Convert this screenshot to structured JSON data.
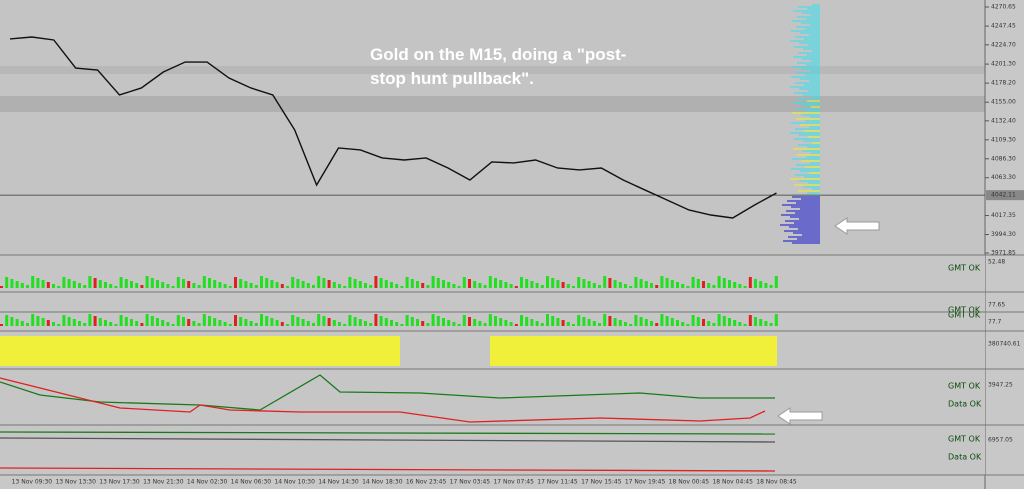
{
  "chart_data": {
    "type": "line",
    "annotation": [
      "Gold on the M15, doing a \"post-",
      "stop hunt pullback\"."
    ],
    "categories": [
      null,
      "13 Nov 09:30",
      null,
      "13 Nov 13:30",
      null,
      "13 Nov 17:30",
      null,
      "13 Nov 21:30",
      null,
      "14 Nov 02:30",
      null,
      "14 Nov 06:30",
      null,
      "14 Nov 10:30",
      null,
      "14 Nov 14:30",
      null,
      "14 Nov 18:30",
      null,
      "16 Nov 23:45",
      null,
      "17 Nov 03:45",
      null,
      "17 Nov 07:45",
      null,
      "17 Nov 11:45",
      null,
      "17 Nov 15:45",
      null,
      "17 Nov 19:45",
      null,
      "18 Nov 00:45",
      null,
      "18 Nov 04:45",
      null,
      "18 Nov 08:45"
    ],
    "values": [
      4231.8,
      4234.2,
      4230.6,
      4196.5,
      4194.1,
      4163.8,
      4172.3,
      4191.7,
      4203.8,
      4203.8,
      4184.4,
      4172.3,
      4163.8,
      4121.3,
      4054.4,
      4099.4,
      4097.0,
      4087.3,
      4084.8,
      4087.3,
      4075.1,
      4060.5,
      4082.4,
      4081.2,
      4084.8,
      4075.1,
      4072.7,
      4075.1,
      4060.5,
      4048.3,
      4036.2,
      4024.1,
      4018.0,
      4014.4,
      4030.2,
      4044.7
    ],
    "color": "#111111",
    "ylim": [
      3971.85,
      4270.65
    ],
    "yticks": [
      4270.65,
      4247.45,
      {
        "value": 4224.7,
        "label": "4224.70"
      },
      {
        "value": 4201.3,
        "label": "4201.30"
      },
      {
        "value": 4178.2,
        "label": "4178.20"
      },
      {
        "value": 4155.0,
        "label": "4155.00"
      },
      {
        "value": 4132.4,
        "label": "4132.40"
      },
      {
        "value": 4109.3,
        "label": "4109.30"
      },
      {
        "value": 4086.3,
        "label": "4086.30"
      },
      {
        "value": 4063.3,
        "label": "4063.30"
      },
      4017.35,
      {
        "value": 3994.3,
        "label": "3994.30"
      },
      3971.85
    ],
    "last_price": 4042.11
  },
  "panels": [
    {
      "axis_label": "52.48",
      "status": [
        "GMT OK"
      ]
    },
    {
      "axis_label": "77.65",
      "status": [
        "GMT OK"
      ]
    },
    {
      "axis_label": "77.7",
      "status": [
        "GMT OK"
      ]
    },
    {
      "axis_label": "380740.61",
      "status": []
    },
    {
      "axis_label": "3947.25",
      "status": [
        "GMT OK",
        "Data OK"
      ]
    },
    {
      "axis_label": "6957.05",
      "status": [
        "GMT OK",
        "Data OK"
      ]
    }
  ]
}
